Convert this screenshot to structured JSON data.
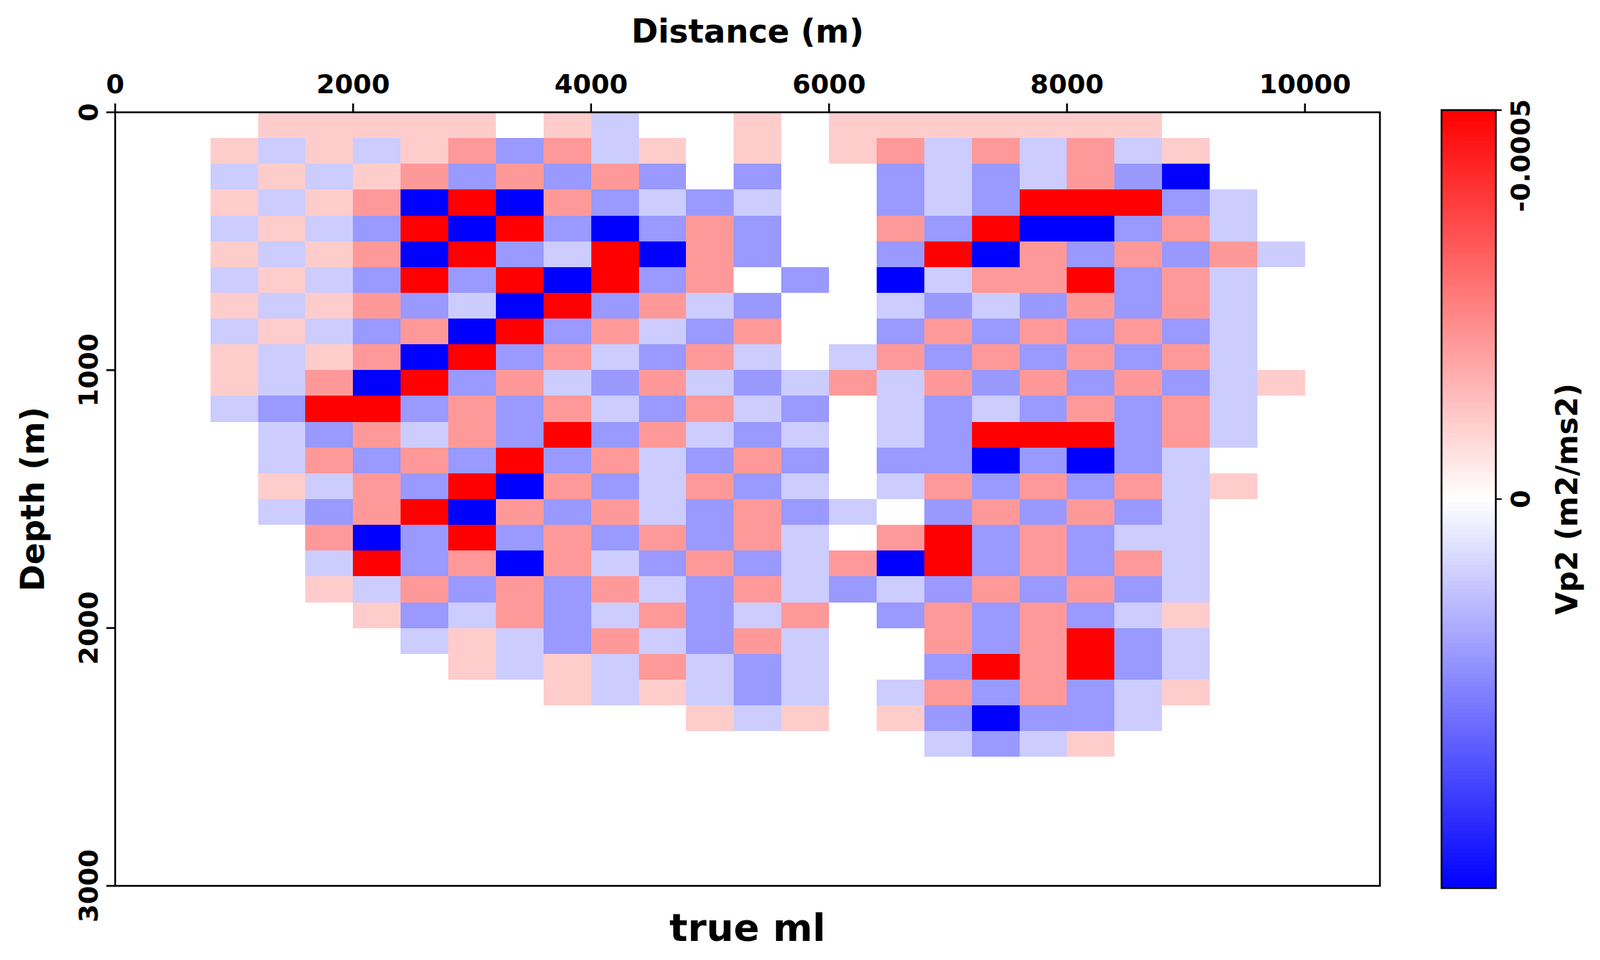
{
  "chart_data": {
    "type": "heatmap",
    "title": "true ml",
    "x_label": "Distance (m)",
    "y_label": "Depth (m)",
    "x": [
      200,
      600,
      1000,
      1400,
      1800,
      2200,
      2600,
      3000,
      3400,
      3800,
      4200,
      4600,
      5000,
      5400,
      5800,
      6200,
      6600,
      7000,
      7400,
      7800,
      8200,
      8600,
      9000,
      9400,
      9800,
      10200
    ],
    "y": [
      50,
      150,
      250,
      350,
      450,
      550,
      650,
      750,
      850,
      950,
      1050,
      1150,
      1250,
      1350,
      1450,
      1550,
      1650,
      1750,
      1850,
      1950,
      2050,
      2150,
      2250,
      2350,
      2450,
      2550,
      2650,
      2750,
      2850,
      2950
    ],
    "values": [
      [
        0,
        0,
        0,
        -0.0001,
        -0.0001,
        -0.0001,
        -0.0001,
        -0.0001,
        0,
        -0.0001,
        0.0001,
        0,
        0,
        -0.0001,
        0,
        -0.0001,
        -0.0001,
        -0.0001,
        -0.0001,
        -0.0001,
        -0.0001,
        -0.0001,
        0,
        0,
        0,
        0
      ],
      [
        0,
        0,
        -0.0001,
        0.0001,
        -0.0001,
        0.0001,
        -0.0001,
        -0.0002,
        0.0002,
        -0.0002,
        0.0001,
        -0.0001,
        0,
        -0.0001,
        0,
        -0.0001,
        -0.0002,
        0.0001,
        -0.0002,
        0.0001,
        -0.0002,
        0.0001,
        -0.0001,
        0,
        0,
        0
      ],
      [
        0,
        0,
        0.0001,
        -0.0001,
        0.0001,
        -0.0001,
        -0.0002,
        0.0002,
        -0.0002,
        0.0002,
        -0.0002,
        0.0002,
        0,
        0.0002,
        0,
        0,
        0.0002,
        0.0001,
        0.0002,
        0.0001,
        -0.0002,
        0.0002,
        0.0005,
        0,
        0,
        0
      ],
      [
        0,
        0,
        -0.0001,
        0.0001,
        -0.0001,
        -0.0002,
        0.0005,
        -0.0005,
        0.0005,
        -0.0002,
        0.0002,
        0.0001,
        0.0002,
        0.0001,
        0,
        0,
        0.0002,
        0.0001,
        0.0002,
        -0.0005,
        -0.0005,
        -0.0005,
        0.0002,
        0.0001,
        0,
        0
      ],
      [
        0,
        0,
        0.0001,
        -0.0001,
        0.0001,
        0.0002,
        -0.0005,
        0.0005,
        -0.0005,
        0.0002,
        0.0005,
        0.0002,
        -0.0002,
        0.0002,
        0,
        0,
        -0.0002,
        0.0002,
        -0.0005,
        0.0005,
        0.0005,
        0.0002,
        -0.0002,
        0.0001,
        0,
        0
      ],
      [
        0,
        0,
        -0.0001,
        0.0001,
        -0.0001,
        -0.0002,
        0.0005,
        -0.0005,
        0.0002,
        0.0001,
        -0.0005,
        0.0005,
        -0.0002,
        0.0002,
        0,
        0,
        0.0002,
        -0.0005,
        0.0005,
        -0.0002,
        0.0002,
        -0.0002,
        0.0002,
        -0.0002,
        0.0001,
        0
      ],
      [
        0,
        0,
        0.0001,
        -0.0001,
        0.0001,
        0.0002,
        -0.0005,
        0.0002,
        -0.0005,
        0.0005,
        -0.0005,
        0.0002,
        -0.0002,
        0,
        0.0002,
        0,
        0.0005,
        0.0001,
        -0.0002,
        -0.0002,
        -0.0005,
        0.0002,
        -0.0002,
        0.0001,
        0,
        0
      ],
      [
        0,
        0,
        -0.0001,
        0.0001,
        -0.0001,
        -0.0002,
        0.0002,
        0.0001,
        0.0005,
        -0.0005,
        0.0002,
        -0.0002,
        0.0001,
        0.0002,
        0,
        0,
        0.0001,
        0.0002,
        0.0001,
        0.0002,
        -0.0002,
        0.0002,
        -0.0002,
        0.0001,
        0,
        0
      ],
      [
        0,
        0,
        0.0001,
        -0.0001,
        0.0001,
        0.0002,
        -0.0002,
        0.0005,
        -0.0005,
        0.0002,
        -0.0002,
        0.0001,
        0.0002,
        -0.0002,
        0,
        0,
        0.0002,
        -0.0002,
        0.0002,
        -0.0002,
        0.0002,
        -0.0002,
        0.0002,
        0.0001,
        0,
        0
      ],
      [
        0,
        0,
        -0.0001,
        0.0001,
        -0.0001,
        -0.0002,
        0.0005,
        -0.0005,
        0.0002,
        -0.0002,
        0.0001,
        0.0002,
        -0.0002,
        0.0001,
        0,
        0.0001,
        -0.0002,
        0.0002,
        -0.0002,
        0.0002,
        -0.0002,
        0.0002,
        -0.0002,
        0.0001,
        0,
        0
      ],
      [
        0,
        0,
        -0.0001,
        0.0001,
        -0.0002,
        0.0005,
        -0.0005,
        0.0002,
        -0.0002,
        0.0001,
        0.0002,
        -0.0002,
        0.0001,
        0.0002,
        0.0001,
        -0.0002,
        0.0001,
        -0.0002,
        0.0002,
        -0.0002,
        0.0002,
        -0.0002,
        0.0002,
        0.0001,
        -0.0001,
        0
      ],
      [
        0,
        0,
        0.0001,
        0.0002,
        -0.0005,
        -0.0005,
        0.0002,
        -0.0002,
        0.0002,
        -0.0002,
        0.0001,
        0.0002,
        -0.0002,
        0.0001,
        0.0002,
        0,
        0.0001,
        0.0002,
        0.0001,
        0.0002,
        -0.0002,
        0.0002,
        -0.0002,
        0.0001,
        0,
        0
      ],
      [
        0,
        0,
        0,
        0.0001,
        0.0002,
        -0.0002,
        0.0001,
        -0.0002,
        0.0002,
        -0.0005,
        0.0002,
        -0.0002,
        0.0001,
        0.0002,
        0.0001,
        0,
        0.0001,
        0.0002,
        -0.0005,
        -0.0005,
        -0.0005,
        0.0002,
        -0.0002,
        0.0001,
        0,
        0
      ],
      [
        0,
        0,
        0,
        0.0001,
        -0.0002,
        0.0002,
        -0.0002,
        0.0002,
        -0.0005,
        0.0002,
        -0.0002,
        0.0001,
        0.0002,
        -0.0002,
        0.0002,
        0,
        0.0002,
        0.0002,
        0.0005,
        0.0002,
        0.0005,
        0.0002,
        0.0001,
        0,
        0,
        0
      ],
      [
        0,
        0,
        0,
        -0.0001,
        0.0001,
        -0.0002,
        0.0002,
        -0.0005,
        0.0005,
        -0.0002,
        0.0002,
        0.0001,
        -0.0002,
        0.0002,
        0.0001,
        0,
        0.0001,
        -0.0002,
        0.0002,
        -0.0002,
        0.0002,
        -0.0002,
        0.0001,
        -0.0001,
        0,
        0
      ],
      [
        0,
        0,
        0,
        0.0001,
        0.0002,
        -0.0002,
        -0.0005,
        0.0005,
        -0.0002,
        0.0002,
        -0.0002,
        0.0001,
        0.0002,
        -0.0002,
        0.0002,
        0.0001,
        0,
        0.0002,
        -0.0002,
        0.0002,
        -0.0002,
        0.0002,
        0.0001,
        0,
        0,
        0
      ],
      [
        0,
        0,
        0,
        0,
        -0.0002,
        0.0005,
        0.0002,
        -0.0005,
        0.0002,
        -0.0002,
        0.0002,
        -0.0002,
        0.0002,
        -0.0002,
        0.0001,
        0,
        -0.0002,
        -0.0005,
        0.0002,
        -0.0002,
        0.0002,
        0.0001,
        0.0001,
        0,
        0,
        0
      ],
      [
        0,
        0,
        0,
        0,
        0.0001,
        -0.0005,
        0.0002,
        -0.0002,
        0.0005,
        -0.0002,
        0.0001,
        0.0002,
        -0.0002,
        0.0002,
        0.0001,
        -0.0002,
        0.0005,
        -0.0005,
        0.0002,
        -0.0002,
        0.0002,
        -0.0002,
        0.0001,
        0,
        0,
        0
      ],
      [
        0,
        0,
        0,
        0,
        -0.0001,
        0.0001,
        -0.0002,
        0.0002,
        -0.0002,
        0.0002,
        -0.0002,
        0.0001,
        0.0002,
        -0.0002,
        0.0001,
        0.0002,
        0.0001,
        0.0002,
        -0.0002,
        0.0002,
        -0.0002,
        0.0002,
        0.0001,
        0,
        0,
        0
      ],
      [
        0,
        0,
        0,
        0,
        0,
        -0.0001,
        0.0002,
        0.0001,
        -0.0002,
        0.0002,
        0.0001,
        -0.0002,
        0.0002,
        0.0001,
        -0.0002,
        0,
        0.0002,
        -0.0002,
        0.0002,
        -0.0002,
        0.0002,
        0.0001,
        -0.0001,
        0,
        0,
        0
      ],
      [
        0,
        0,
        0,
        0,
        0,
        0,
        0.0001,
        -0.0001,
        0.0001,
        0.0002,
        -0.0002,
        0.0001,
        0.0002,
        -0.0002,
        0.0001,
        0,
        0,
        -0.0002,
        0.0002,
        -0.0002,
        -0.0005,
        0.0002,
        0.0001,
        0,
        0,
        0
      ],
      [
        0,
        0,
        0,
        0,
        0,
        0,
        0,
        -0.0001,
        0.0001,
        -0.0001,
        0.0001,
        -0.0002,
        0.0001,
        0.0002,
        0.0001,
        0,
        0,
        0.0002,
        -0.0005,
        -0.0002,
        -0.0005,
        0.0002,
        0.0001,
        0,
        0,
        0
      ],
      [
        0,
        0,
        0,
        0,
        0,
        0,
        0,
        0,
        0,
        -0.0001,
        0.0001,
        -0.0001,
        0.0001,
        0.0002,
        0.0001,
        0,
        0.0001,
        -0.0002,
        0.0002,
        -0.0002,
        0.0002,
        0.0001,
        -0.0001,
        0,
        0,
        0
      ],
      [
        0,
        0,
        0,
        0,
        0,
        0,
        0,
        0,
        0,
        0,
        0,
        0,
        -0.0001,
        0.0001,
        -0.0001,
        0,
        -0.0001,
        0.0002,
        0.0005,
        0.0002,
        0.0002,
        0.0001,
        0,
        0,
        0,
        0
      ],
      [
        0,
        0,
        0,
        0,
        0,
        0,
        0,
        0,
        0,
        0,
        0,
        0,
        0,
        0,
        0,
        0,
        0,
        0.0001,
        0.0002,
        0.0001,
        -0.0001,
        0,
        0,
        0,
        0,
        0
      ],
      [
        0,
        0,
        0,
        0,
        0,
        0,
        0,
        0,
        0,
        0,
        0,
        0,
        0,
        0,
        0,
        0,
        0,
        0,
        0,
        0,
        0,
        0,
        0,
        0,
        0,
        0
      ],
      [
        0,
        0,
        0,
        0,
        0,
        0,
        0,
        0,
        0,
        0,
        0,
        0,
        0,
        0,
        0,
        0,
        0,
        0,
        0,
        0,
        0,
        0,
        0,
        0,
        0,
        0
      ],
      [
        0,
        0,
        0,
        0,
        0,
        0,
        0,
        0,
        0,
        0,
        0,
        0,
        0,
        0,
        0,
        0,
        0,
        0,
        0,
        0,
        0,
        0,
        0,
        0,
        0,
        0
      ],
      [
        0,
        0,
        0,
        0,
        0,
        0,
        0,
        0,
        0,
        0,
        0,
        0,
        0,
        0,
        0,
        0,
        0,
        0,
        0,
        0,
        0,
        0,
        0,
        0,
        0,
        0
      ],
      [
        0,
        0,
        0,
        0,
        0,
        0,
        0,
        0,
        0,
        0,
        0,
        0,
        0,
        0,
        0,
        0,
        0,
        0,
        0,
        0,
        0,
        0,
        0,
        0,
        0,
        0
      ]
    ],
    "xlim": [
      0,
      10630
    ],
    "ylim": [
      0,
      3000
    ],
    "xticks": [
      0,
      2000,
      4000,
      6000,
      8000,
      10000
    ],
    "yticks": [
      0,
      1000,
      2000,
      3000
    ],
    "colorbar": {
      "label": "Vp2 (m2/ms2)",
      "range": [
        -0.0005,
        0.0005
      ],
      "ticks": [
        -0.0005,
        0
      ]
    }
  }
}
